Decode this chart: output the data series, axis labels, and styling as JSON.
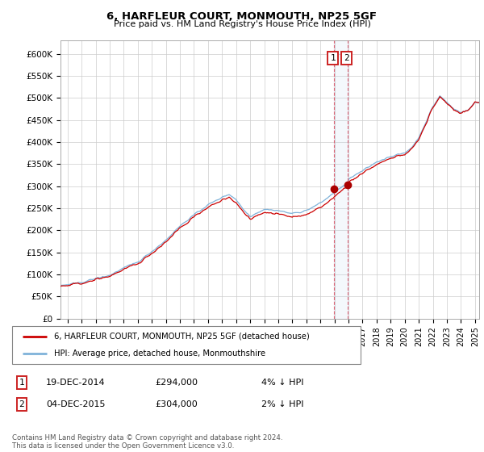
{
  "title": "6, HARFLEUR COURT, MONMOUTH, NP25 5GF",
  "subtitle": "Price paid vs. HM Land Registry's House Price Index (HPI)",
  "ylabel_ticks": [
    "£0",
    "£50K",
    "£100K",
    "£150K",
    "£200K",
    "£250K",
    "£300K",
    "£350K",
    "£400K",
    "£450K",
    "£500K",
    "£550K",
    "£600K"
  ],
  "ytick_values": [
    0,
    50000,
    100000,
    150000,
    200000,
    250000,
    300000,
    350000,
    400000,
    450000,
    500000,
    550000,
    600000
  ],
  "xlim_start": 1995.5,
  "xlim_end": 2025.3,
  "ylim_min": 0,
  "ylim_max": 630000,
  "purchases": [
    {
      "date_num": 2014.97,
      "price": 294000,
      "label": "1"
    },
    {
      "date_num": 2015.92,
      "price": 304000,
      "label": "2"
    }
  ],
  "marker_color": "#aa0000",
  "hpi_color": "#7fb2d9",
  "price_line_color": "#cc0000",
  "legend_label1": "6, HARFLEUR COURT, MONMOUTH, NP25 5GF (detached house)",
  "legend_label2": "HPI: Average price, detached house, Monmouthshire",
  "table_rows": [
    {
      "num": "1",
      "date": "19-DEC-2014",
      "price": "£294,000",
      "pct": "4% ↓ HPI"
    },
    {
      "num": "2",
      "date": "04-DEC-2015",
      "price": "£304,000",
      "pct": "2% ↓ HPI"
    }
  ],
  "footer": "Contains HM Land Registry data © Crown copyright and database right 2024.\nThis data is licensed under the Open Government Licence v3.0.",
  "shade_start": 2014.97,
  "shade_end": 2016.0,
  "background_color": "#ffffff",
  "grid_color": "#cccccc"
}
